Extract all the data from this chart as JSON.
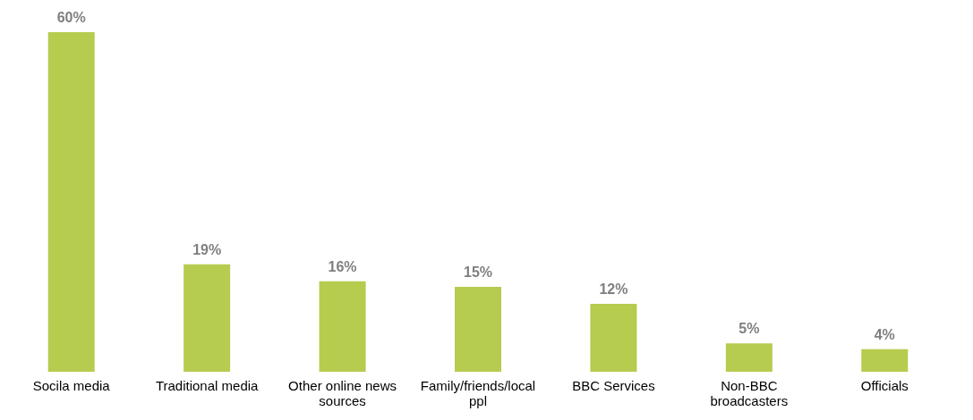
{
  "chart_data": {
    "type": "bar",
    "categories": [
      "Socila media",
      "Traditional media",
      "Other online news sources",
      "Family/friends/local ppl",
      "BBC Services",
      "Non-BBC broadcasters",
      "Officials"
    ],
    "values": [
      60,
      19,
      16,
      15,
      12,
      5,
      4
    ],
    "value_labels": [
      "60%",
      "19%",
      "16%",
      "15%",
      "12%",
      "5%",
      "4%"
    ],
    "color": "#b5cc4f"
  }
}
